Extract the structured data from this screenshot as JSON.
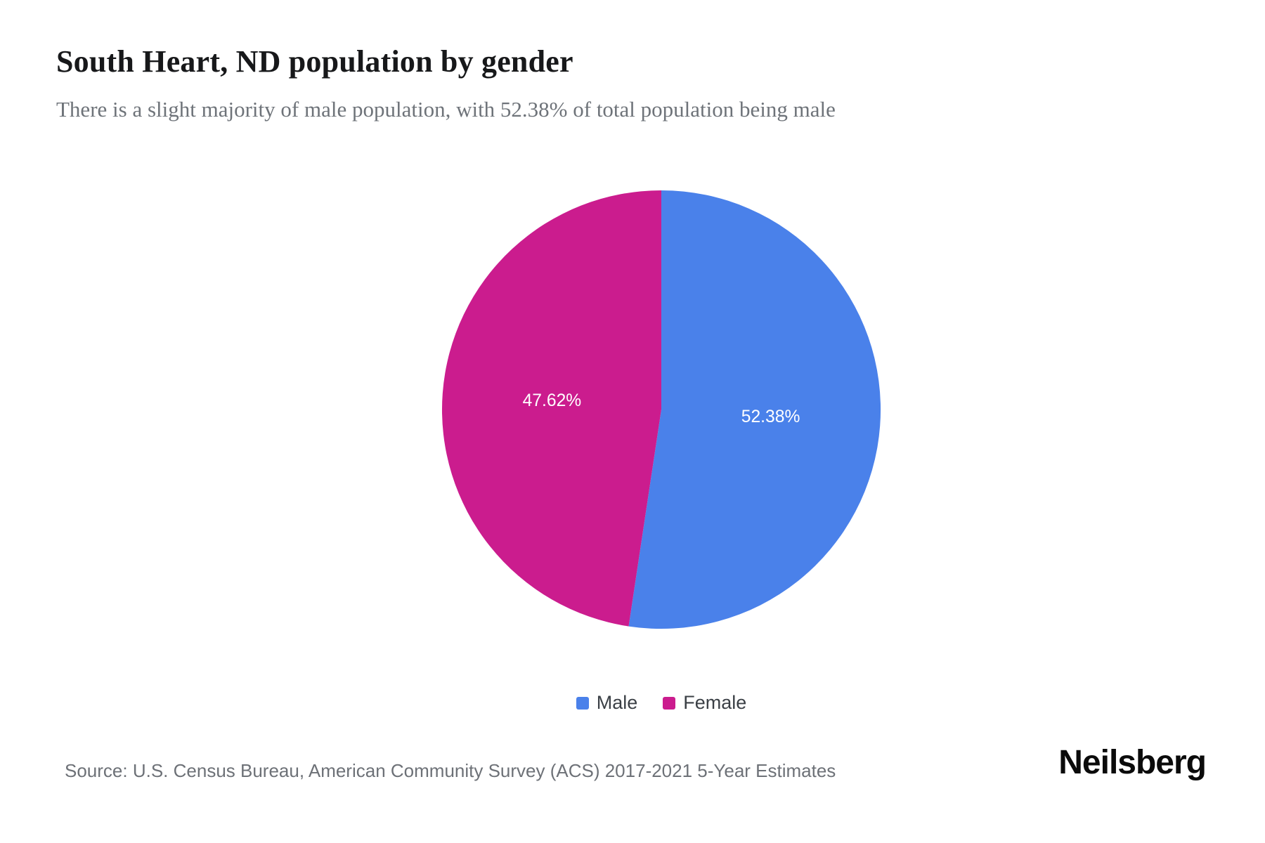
{
  "header": {
    "title": "South Heart, ND population by gender",
    "subtitle": "There is a slight majority of male population, with 52.38% of total population being male"
  },
  "chart_data": {
    "type": "pie",
    "title": "South Heart, ND population by gender",
    "slices": [
      {
        "label": "Male",
        "value": 52.38,
        "display": "52.38%",
        "color": "#4a81ea"
      },
      {
        "label": "Female",
        "value": 47.62,
        "display": "47.62%",
        "color": "#cb1c8e"
      }
    ],
    "start_angle_deg": 0,
    "direction": "clockwise",
    "label_color": "#ffffff",
    "label_radius_ratio": 0.5,
    "legend_position": "bottom"
  },
  "footer": {
    "source": "Source: U.S. Census Bureau, American Community Survey (ACS) 2017-2021 5-Year Estimates",
    "brand": "Neilsberg"
  }
}
